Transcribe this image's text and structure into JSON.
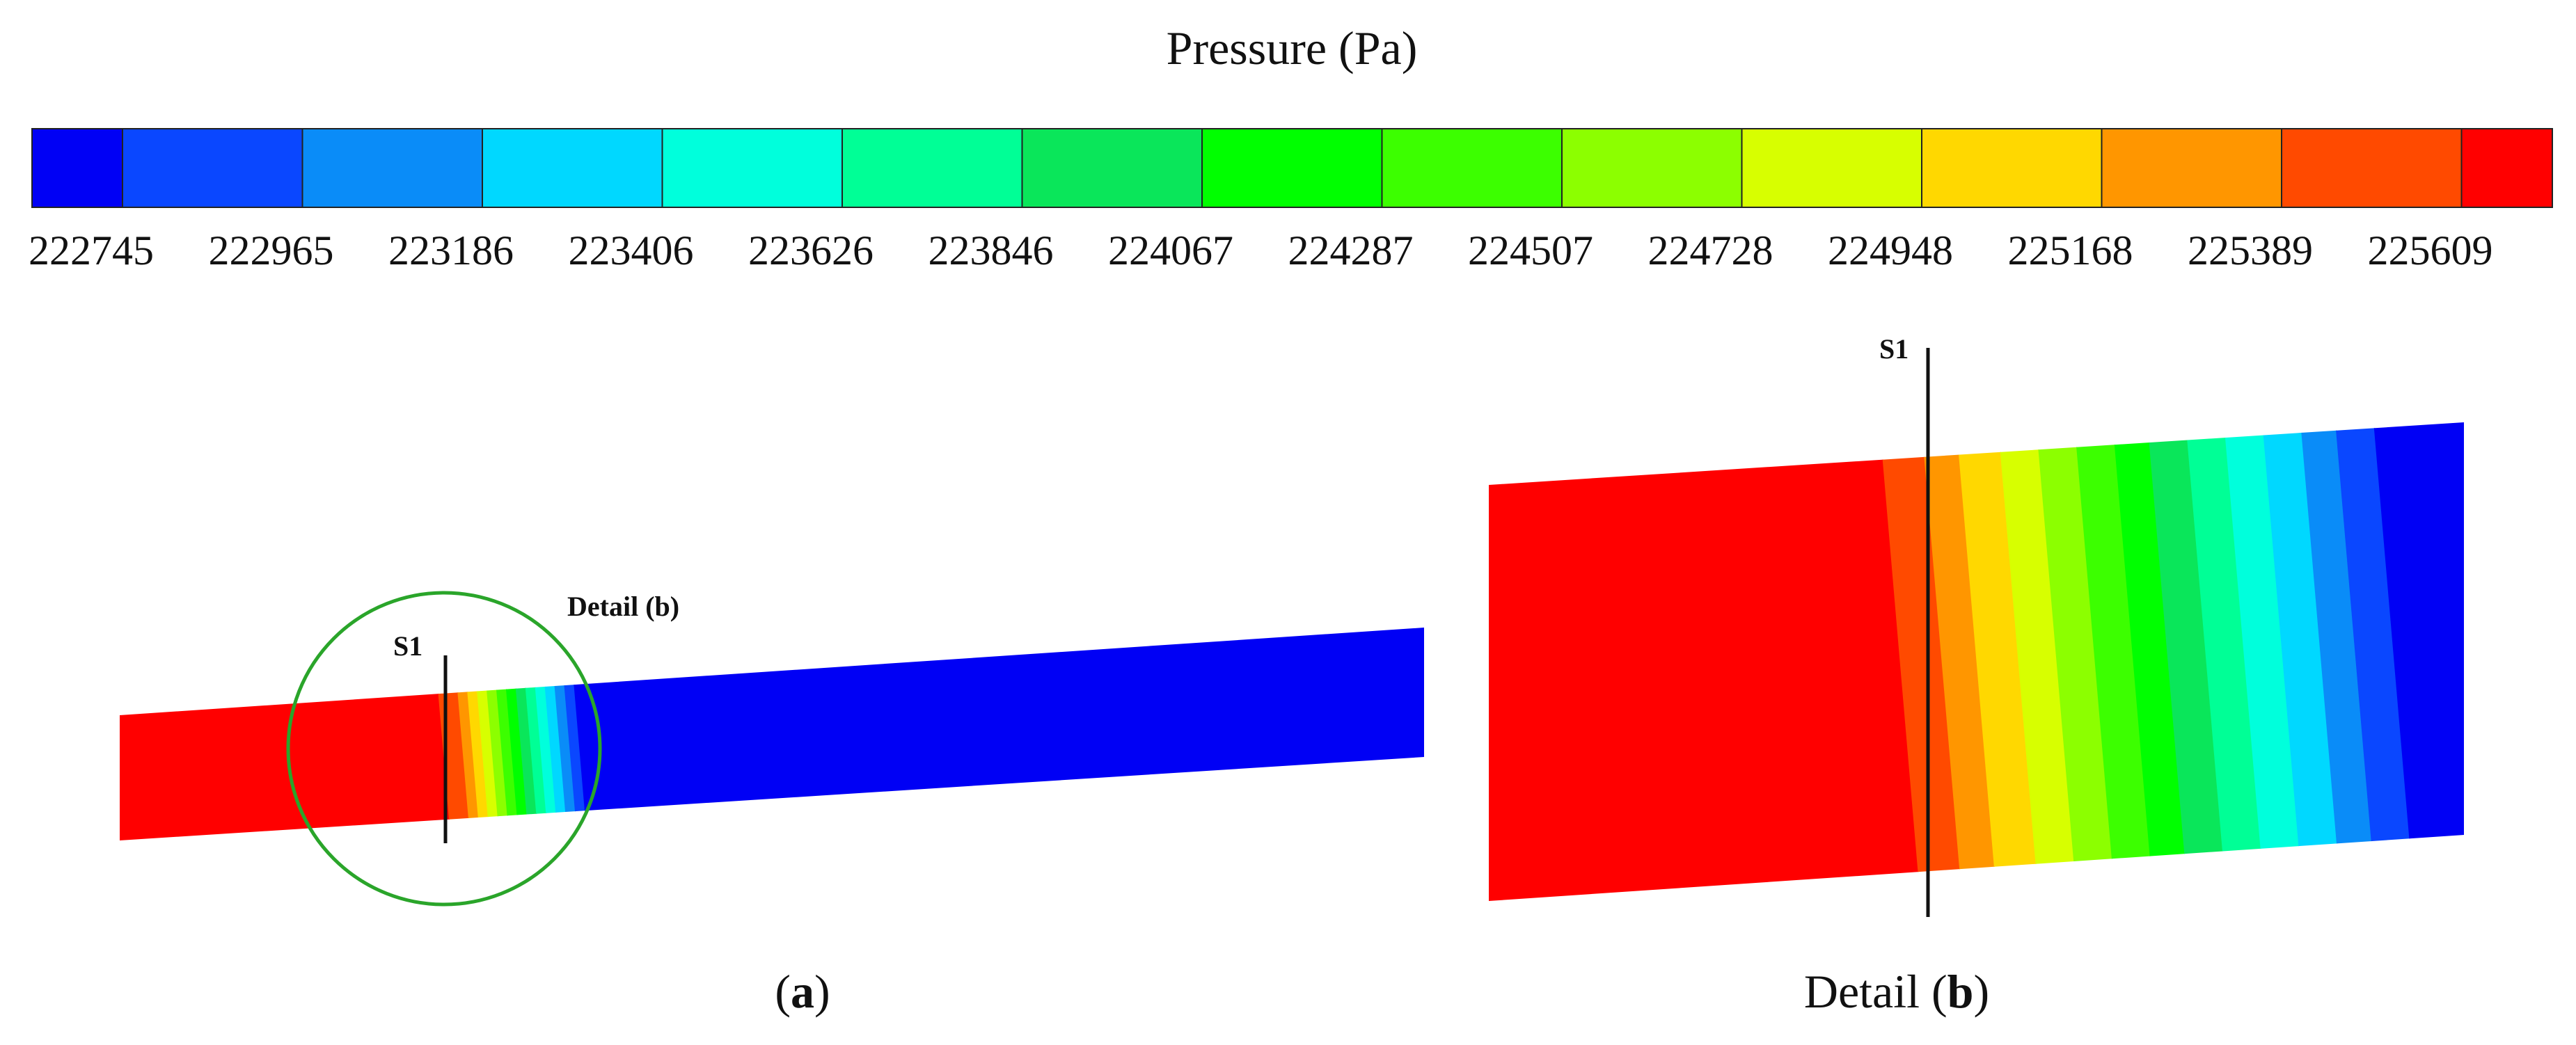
{
  "legend": {
    "title": "Pressure (Pa)",
    "ticks": [
      "222745",
      "222965",
      "223186",
      "223406",
      "223626",
      "223846",
      "224067",
      "224287",
      "224507",
      "224728",
      "224948",
      "225168",
      "225389",
      "225609"
    ],
    "colors": [
      "#0000f5",
      "#0a47ff",
      "#0a8cf8",
      "#00d8ff",
      "#00ffdc",
      "#00ff96",
      "#0ae65a",
      "#00ff00",
      "#3cff00",
      "#8cff00",
      "#d7ff00",
      "#ffd800",
      "#ff9600",
      "#ff4a00",
      "#ff0000"
    ]
  },
  "panel_a": {
    "section_label": "S1",
    "detail_label": "Detail (b)",
    "highlight_color": "#2aa52a",
    "caption_open": "(",
    "caption_bold": "a",
    "caption_close": ")"
  },
  "panel_b": {
    "section_label": "S1",
    "caption_prefix": "Detail (",
    "caption_bold": "b",
    "caption_close": ")"
  }
}
